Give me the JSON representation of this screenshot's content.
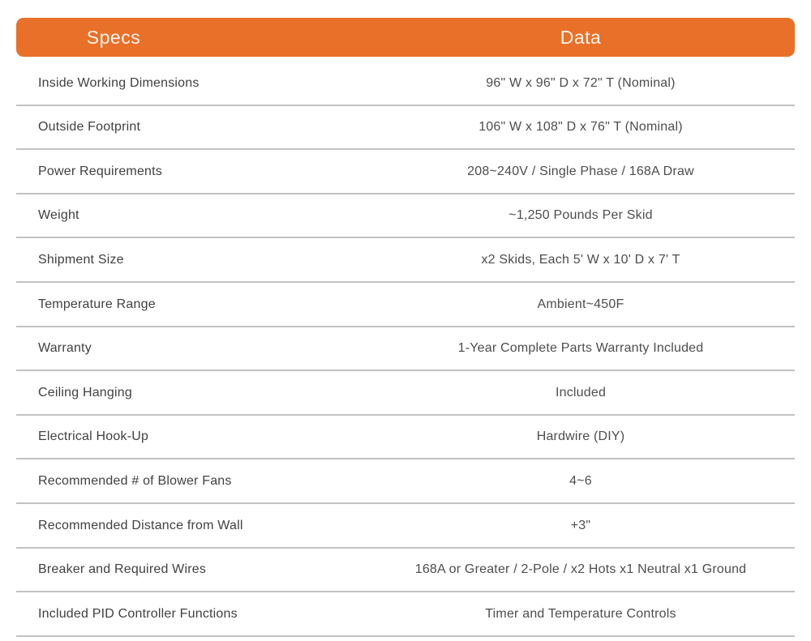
{
  "colors": {
    "accent_orange": "#E87029",
    "header_text": "#FDF4EE",
    "divider_gray": "#C2C2C2",
    "spec_text": "#414042",
    "value_text": "#4D4D4F",
    "background": "#FFFFFF"
  },
  "table": {
    "header": {
      "specs": "Specs",
      "data": "Data"
    },
    "rows": [
      {
        "spec": "Inside Working Dimensions",
        "value": "96\" W x 96\" D x 72\" T (Nominal)"
      },
      {
        "spec": "Outside Footprint",
        "value": "106\" W x 108\" D x 76\" T (Nominal)"
      },
      {
        "spec": "Power Requirements",
        "value": "208~240V / Single Phase / 168A Draw"
      },
      {
        "spec": "Weight",
        "value": "~1,250 Pounds Per Skid"
      },
      {
        "spec": "Shipment Size",
        "value": "x2 Skids, Each 5' W x 10' D x 7' T"
      },
      {
        "spec": "Temperature Range",
        "value": "Ambient~450F"
      },
      {
        "spec": "Warranty",
        "value": "1-Year Complete Parts Warranty Included"
      },
      {
        "spec": "Ceiling Hanging",
        "value": "Included"
      },
      {
        "spec": "Electrical Hook-Up",
        "value": "Hardwire (DIY)"
      },
      {
        "spec": "Recommended # of Blower Fans",
        "value": "4~6"
      },
      {
        "spec": "Recommended Distance from Wall",
        "value": "+3\""
      },
      {
        "spec": "Breaker and Required Wires",
        "value": "168A or Greater / 2-Pole / x2 Hots x1 Neutral x1 Ground"
      },
      {
        "spec": "Included PID Controller Functions",
        "value": "Timer and Temperature Controls"
      }
    ]
  }
}
